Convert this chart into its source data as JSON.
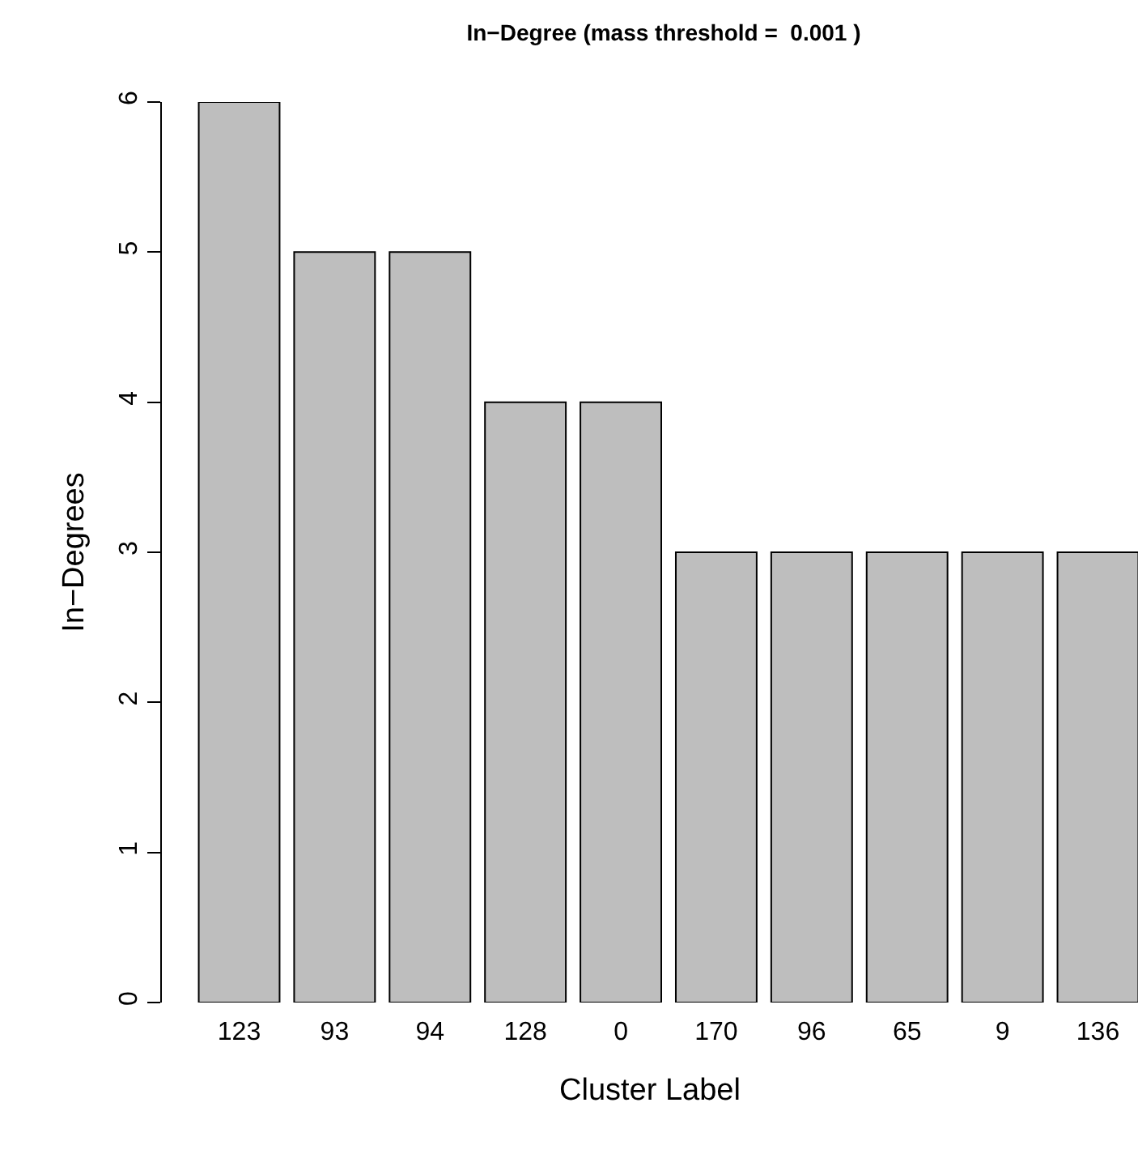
{
  "chart_data": {
    "type": "bar",
    "title": "In−Degree (mass threshold =  0.001 )",
    "xlabel": "Cluster Label",
    "ylabel": "In−Degrees",
    "categories": [
      "123",
      "93",
      "94",
      "128",
      "0",
      "170",
      "96",
      "65",
      "9",
      "136"
    ],
    "values": [
      6,
      5,
      5,
      4,
      4,
      3,
      3,
      3,
      3,
      3
    ],
    "color": "#bebebe",
    "ylim": [
      0,
      6
    ],
    "yticks": [
      0,
      1,
      2,
      3,
      4,
      5,
      6
    ]
  }
}
